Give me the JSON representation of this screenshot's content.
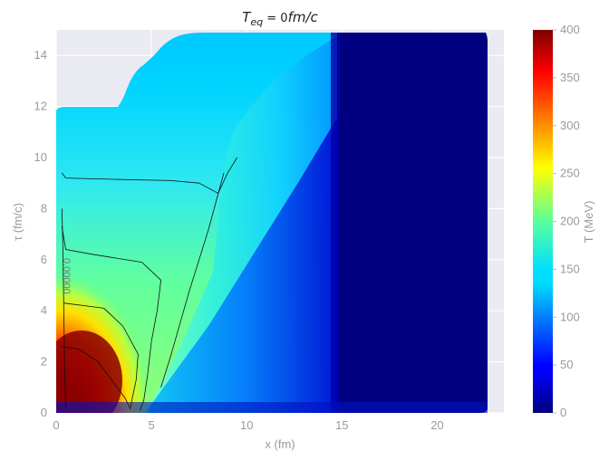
{
  "chart_data": {
    "type": "heatmap",
    "title": {
      "symbol": "T",
      "subscript": "eq",
      "equals": " = ",
      "value": "0",
      "unit": "fm/c"
    },
    "xlabel": "x (fm)",
    "ylabel": "τ (fm/c)",
    "xlim": [
      0,
      23.5
    ],
    "ylim": [
      0,
      15
    ],
    "x_ticks": [
      0,
      5,
      10,
      15,
      20
    ],
    "y_ticks": [
      0,
      2,
      4,
      6,
      8,
      10,
      12,
      14
    ],
    "grid": true,
    "colorbar": {
      "label": "T (MeV)",
      "range": [
        0,
        400
      ],
      "ticks": [
        0,
        50,
        100,
        150,
        200,
        250,
        300,
        350,
        400
      ],
      "colormap": "jet"
    },
    "contour_label": "0.00000",
    "contour_lines": [
      [
        [
          0.3,
          9.4
        ],
        [
          0.5,
          9.2
        ],
        [
          3,
          9.15
        ],
        [
          6,
          9.1
        ],
        [
          7.5,
          9.0
        ],
        [
          8,
          8.8
        ],
        [
          8.5,
          8.6
        ],
        [
          9,
          9.4
        ],
        [
          9.5,
          10.0
        ]
      ],
      [
        [
          0.3,
          7.3
        ],
        [
          0.5,
          6.4
        ],
        [
          2,
          6.2
        ],
        [
          4.5,
          5.9
        ],
        [
          5.5,
          5.2
        ],
        [
          5.3,
          4.0
        ],
        [
          5.0,
          2.8
        ],
        [
          4.8,
          1.5
        ],
        [
          4.6,
          0.5
        ],
        [
          4.4,
          0.1
        ]
      ],
      [
        [
          0.4,
          4.3
        ],
        [
          1.5,
          4.2
        ],
        [
          2.5,
          4.1
        ],
        [
          3.5,
          3.4
        ],
        [
          4.3,
          2.3
        ],
        [
          4.2,
          1.3
        ],
        [
          4.0,
          0.6
        ],
        [
          3.9,
          0.2
        ]
      ],
      [
        [
          0.3,
          2.6
        ],
        [
          1.2,
          2.5
        ],
        [
          2.2,
          2.0
        ],
        [
          3.0,
          1.2
        ],
        [
          3.6,
          0.6
        ],
        [
          3.9,
          0.15
        ]
      ],
      [
        [
          0.3,
          8.0
        ],
        [
          0.35,
          6.5
        ],
        [
          0.4,
          4.0
        ],
        [
          0.45,
          1.5
        ],
        [
          0.5,
          0.2
        ]
      ],
      [
        [
          5.5,
          1.0
        ],
        [
          6.0,
          2.2
        ],
        [
          6.5,
          3.5
        ],
        [
          7.0,
          4.8
        ],
        [
          7.5,
          6.0
        ],
        [
          8.0,
          7.2
        ],
        [
          8.4,
          8.3
        ],
        [
          8.8,
          9.4
        ]
      ]
    ]
  }
}
